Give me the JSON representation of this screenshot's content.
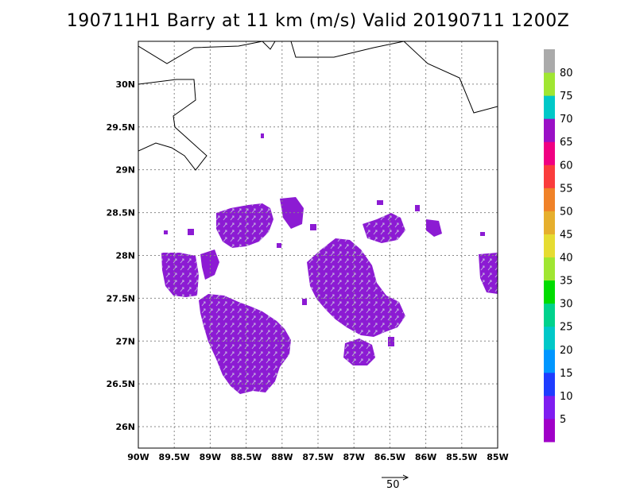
{
  "title": "190711H1 Barry at 11 km (m/s) Valid 20190711 1200Z",
  "map": {
    "lon_ticks": [
      "90W",
      "89.5W",
      "89W",
      "88.5W",
      "88W",
      "87.5W",
      "87W",
      "86.5W",
      "86W",
      "85.5W",
      "85W"
    ],
    "lat_ticks": [
      "26N",
      "26.5N",
      "27N",
      "27.5N",
      "28N",
      "28.5N",
      "29N",
      "29.5N",
      "30N"
    ],
    "lon_range": [
      -90,
      -85
    ],
    "lat_range": [
      25.75,
      30.5
    ],
    "grid": "dotted",
    "wind_color": "#8c1bd3",
    "arrow_color": "#b9a6d0"
  },
  "colorbar": {
    "labels": [
      "5",
      "10",
      "15",
      "20",
      "25",
      "30",
      "35",
      "40",
      "45",
      "50",
      "55",
      "60",
      "65",
      "70",
      "75",
      "80"
    ],
    "colors": [
      "#a000c8",
      "#7f1df0",
      "#1e3cff",
      "#0096ff",
      "#00c8c8",
      "#00d28c",
      "#00dc00",
      "#a0e632",
      "#e6dc32",
      "#e6af2d",
      "#f08228",
      "#fa3c3c",
      "#f00082",
      "#9a10c6",
      "#00c8c8",
      "#a0e632",
      "#aaaaaa"
    ]
  },
  "reference_vector": {
    "label": "50"
  }
}
